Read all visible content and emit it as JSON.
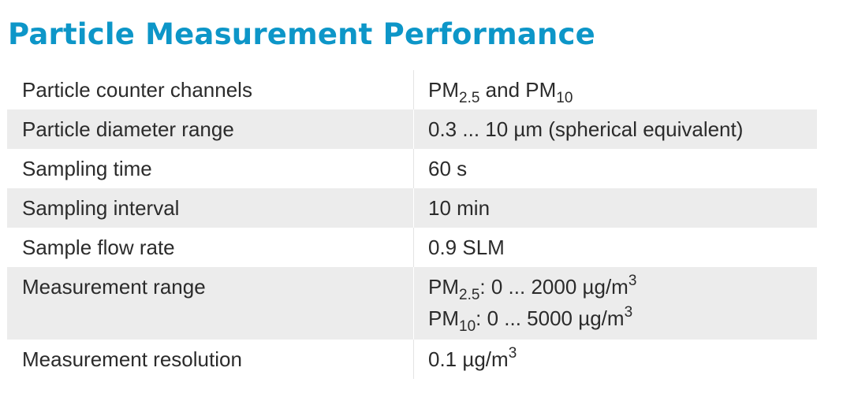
{
  "title": "Particle Measurement Performance",
  "accent_color": "#0d96c8",
  "row_shade_color": "#ececec",
  "rows": [
    {
      "label": "Particle counter channels",
      "value": {
        "p1": "PM",
        "s1": "2.5",
        "p2": " and PM",
        "s2": "10"
      }
    },
    {
      "label": "Particle diameter range",
      "value": "0.3 ... 10 µm (spherical equivalent)"
    },
    {
      "label": "Sampling time",
      "value": "60 s"
    },
    {
      "label": "Sampling interval",
      "value": "10 min"
    },
    {
      "label": "Sample flow rate",
      "value": "0.9 SLM"
    },
    {
      "label": "Measurement range",
      "lines": [
        {
          "p1": "PM",
          "sub": "2.5",
          "p2": ": 0 ... 2000 µg/m",
          "sup": "3"
        },
        {
          "p1": "PM",
          "sub": "10",
          "p2": ": 0 ... 5000 µg/m",
          "sup": "3"
        }
      ]
    },
    {
      "label": "Measurement resolution",
      "value": {
        "p1": "0.1 µg/m",
        "sup": "3"
      }
    }
  ]
}
